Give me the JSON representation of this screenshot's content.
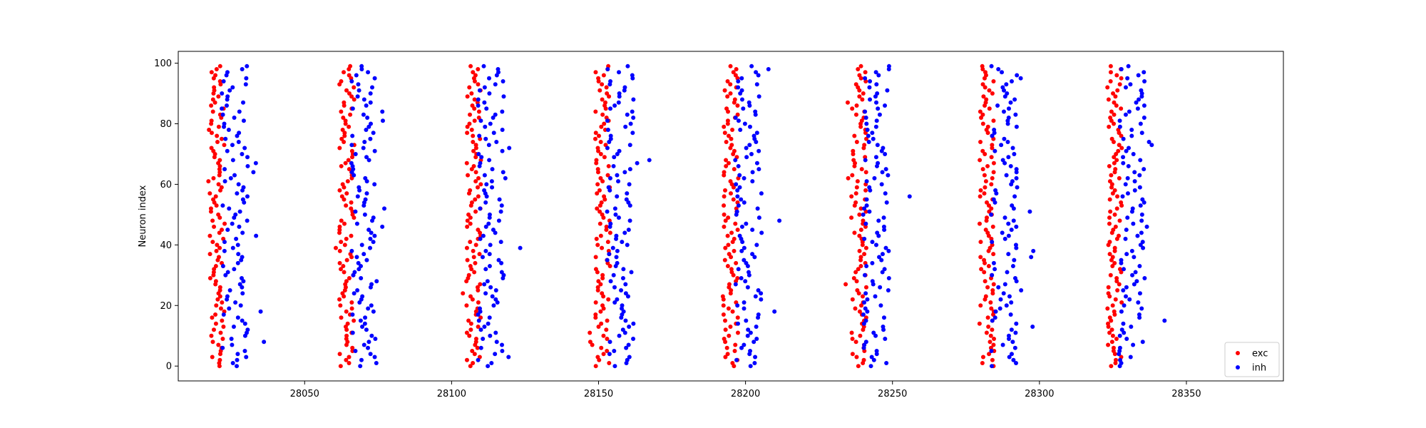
{
  "chart_data": {
    "type": "scatter",
    "title": "",
    "xlabel": "",
    "ylabel": "Neuron index",
    "xlim": [
      28007,
      28383
    ],
    "ylim": [
      -4.9,
      103.9
    ],
    "xticks": [
      28050,
      28100,
      28150,
      28200,
      28250,
      28300,
      28350
    ],
    "yticks": [
      0,
      20,
      40,
      60,
      80,
      100
    ],
    "grid": false,
    "legend_position": "lower right",
    "burst_times": [
      28017.7,
      28061.8,
      28105.0,
      28148.9,
      28192.5,
      28236.0,
      28279.5,
      28323.0
    ],
    "burst_period_approx": 43.6,
    "series": [
      {
        "name": "exc",
        "color": "#ff0000",
        "neuron_index_range": [
          0,
          99
        ],
        "relative_spike_time_window": [
          0,
          6
        ]
      },
      {
        "name": "inh",
        "color": "#0000ff",
        "neuron_index_range": [
          0,
          99
        ],
        "relative_spike_time_window": [
          4,
          16
        ]
      }
    ]
  }
}
